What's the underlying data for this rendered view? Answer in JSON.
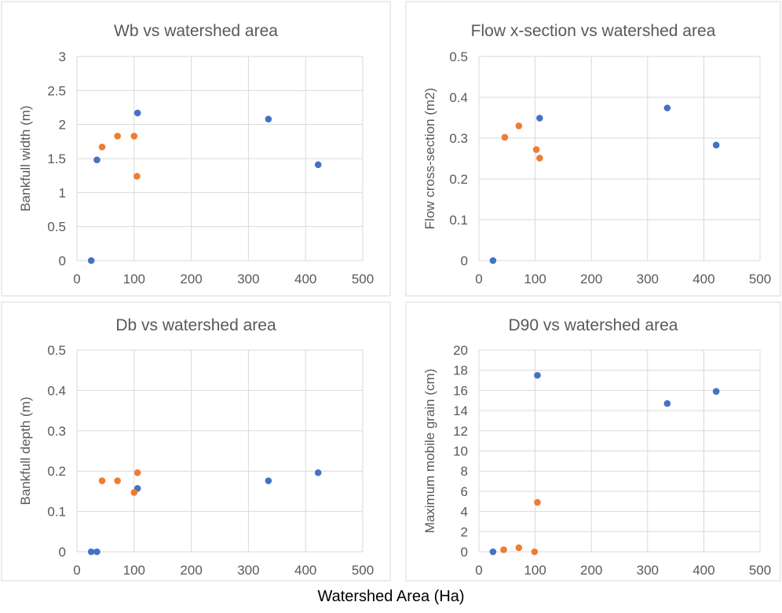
{
  "figure": {
    "xlabel": "Watershed Area (Ha)"
  },
  "colors": {
    "series_a": "#4472C4",
    "series_b": "#ED7D31",
    "grid": "#D9D9D9",
    "text": "#595959",
    "border": "#D9D9D9"
  },
  "chart_data": [
    {
      "type": "scatter",
      "title": "Wb vs watershed area",
      "xlabel": "",
      "ylabel": "Bankfull width (m)",
      "xlim": [
        0,
        500
      ],
      "ylim": [
        0,
        3
      ],
      "xticks": [
        0,
        100,
        200,
        300,
        400,
        500
      ],
      "yticks": [
        0,
        0.5,
        1,
        1.5,
        2,
        2.5,
        3
      ],
      "ytick_labels": [
        "0",
        "0.5",
        "1",
        "1.5",
        "2",
        "2.5",
        "3"
      ],
      "grid": true,
      "legend": "none",
      "series": [
        {
          "color": "#4472C4",
          "points": [
            [
              25,
              0
            ],
            [
              35,
              1.48
            ],
            [
              106,
              2.17
            ],
            [
              335,
              2.08
            ],
            [
              422,
              1.41
            ]
          ]
        },
        {
          "color": "#ED7D31",
          "points": [
            [
              44,
              1.67
            ],
            [
              71,
              1.83
            ],
            [
              100,
              1.83
            ],
            [
              105,
              1.24
            ]
          ]
        }
      ]
    },
    {
      "type": "scatter",
      "title": "Flow x-section vs watershed area",
      "xlabel": "",
      "ylabel": "Flow cross-section (m2)",
      "xlim": [
        0,
        500
      ],
      "ylim": [
        0,
        0.5
      ],
      "xticks": [
        0,
        100,
        200,
        300,
        400,
        500
      ],
      "yticks": [
        0,
        0.1,
        0.2,
        0.3,
        0.4,
        0.5
      ],
      "ytick_labels": [
        "0",
        "0.1",
        "0.2",
        "0.3",
        "0.4",
        "0.5"
      ],
      "grid": true,
      "legend": "none",
      "series": [
        {
          "color": "#4472C4",
          "points": [
            [
              25,
              0
            ],
            [
              108,
              0.349
            ],
            [
              335,
              0.374
            ],
            [
              422,
              0.283
            ]
          ]
        },
        {
          "color": "#ED7D31",
          "points": [
            [
              46,
              0.302
            ],
            [
              71,
              0.33
            ],
            [
              102,
              0.272
            ],
            [
              108,
              0.251
            ]
          ]
        }
      ]
    },
    {
      "type": "scatter",
      "title": "Db vs watershed area",
      "xlabel": "",
      "ylabel": "Bankfull depth (m)",
      "xlim": [
        0,
        500
      ],
      "ylim": [
        0,
        0.5
      ],
      "xticks": [
        0,
        100,
        200,
        300,
        400,
        500
      ],
      "yticks": [
        0,
        0.1,
        0.2,
        0.3,
        0.4,
        0.5
      ],
      "ytick_labels": [
        "0",
        "0.1",
        "0.2",
        "0.3",
        "0.4",
        "0.5"
      ],
      "grid": true,
      "legend": "none",
      "series": [
        {
          "color": "#4472C4",
          "points": [
            [
              25,
              0
            ],
            [
              35,
              0
            ],
            [
              106,
              0.157
            ],
            [
              335,
              0.176
            ],
            [
              422,
              0.196
            ]
          ]
        },
        {
          "color": "#ED7D31",
          "points": [
            [
              44,
              0.176
            ],
            [
              71,
              0.176
            ],
            [
              100,
              0.147
            ],
            [
              106,
              0.196
            ]
          ]
        }
      ]
    },
    {
      "type": "scatter",
      "title": "D90 vs watershed area",
      "xlabel": "",
      "ylabel": "Maximum mobile grain (cm)",
      "xlim": [
        0,
        500
      ],
      "ylim": [
        0,
        20
      ],
      "xticks": [
        0,
        100,
        200,
        300,
        400,
        500
      ],
      "yticks": [
        0,
        2,
        4,
        6,
        8,
        10,
        12,
        14,
        16,
        18,
        20
      ],
      "ytick_labels": [
        "0",
        "2",
        "4",
        "6",
        "8",
        "10",
        "12",
        "14",
        "16",
        "18",
        "20"
      ],
      "grid": true,
      "legend": "none",
      "series": [
        {
          "color": "#4472C4",
          "points": [
            [
              25,
              0
            ],
            [
              104,
              17.5
            ],
            [
              335,
              14.7
            ],
            [
              422,
              15.9
            ]
          ]
        },
        {
          "color": "#ED7D31",
          "points": [
            [
              44,
              0.2
            ],
            [
              71,
              0.4
            ],
            [
              99,
              0
            ],
            [
              104,
              4.9
            ]
          ]
        }
      ]
    }
  ]
}
